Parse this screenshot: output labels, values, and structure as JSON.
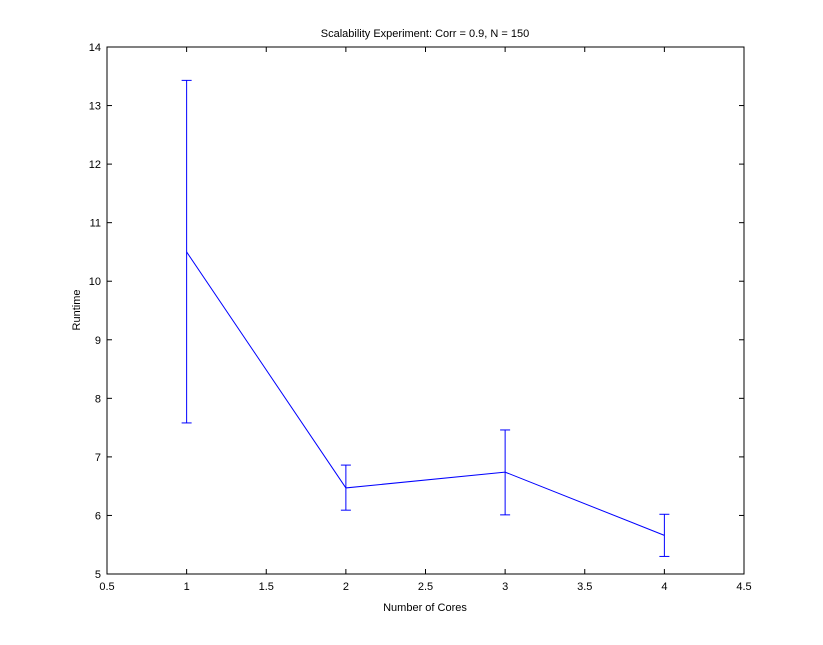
{
  "chart_data": {
    "type": "line",
    "title": "Scalability Experiment: Corr = 0.9, N = 150",
    "xlabel": "Number of Cores",
    "ylabel": "Runtime",
    "xlim": [
      0.5,
      4.5
    ],
    "ylim": [
      5,
      14
    ],
    "x_ticks": [
      0.5,
      1,
      1.5,
      2,
      2.5,
      3,
      3.5,
      4,
      4.5
    ],
    "x_tick_labels": [
      "0.5",
      "1",
      "1.5",
      "2",
      "2.5",
      "3",
      "3.5",
      "4",
      "4.5"
    ],
    "y_ticks": [
      5,
      6,
      7,
      8,
      9,
      10,
      11,
      12,
      13,
      14
    ],
    "y_tick_labels": [
      "5",
      "6",
      "7",
      "8",
      "9",
      "10",
      "11",
      "12",
      "13",
      "14"
    ],
    "grid": false,
    "series": [
      {
        "color": "#0000ff",
        "x": [
          1,
          2,
          3,
          4
        ],
        "y": [
          10.5,
          6.47,
          6.74,
          5.66
        ],
        "error_lower": [
          7.58,
          6.09,
          6.01,
          5.3
        ],
        "error_upper": [
          13.43,
          6.86,
          7.46,
          6.02
        ]
      }
    ]
  }
}
